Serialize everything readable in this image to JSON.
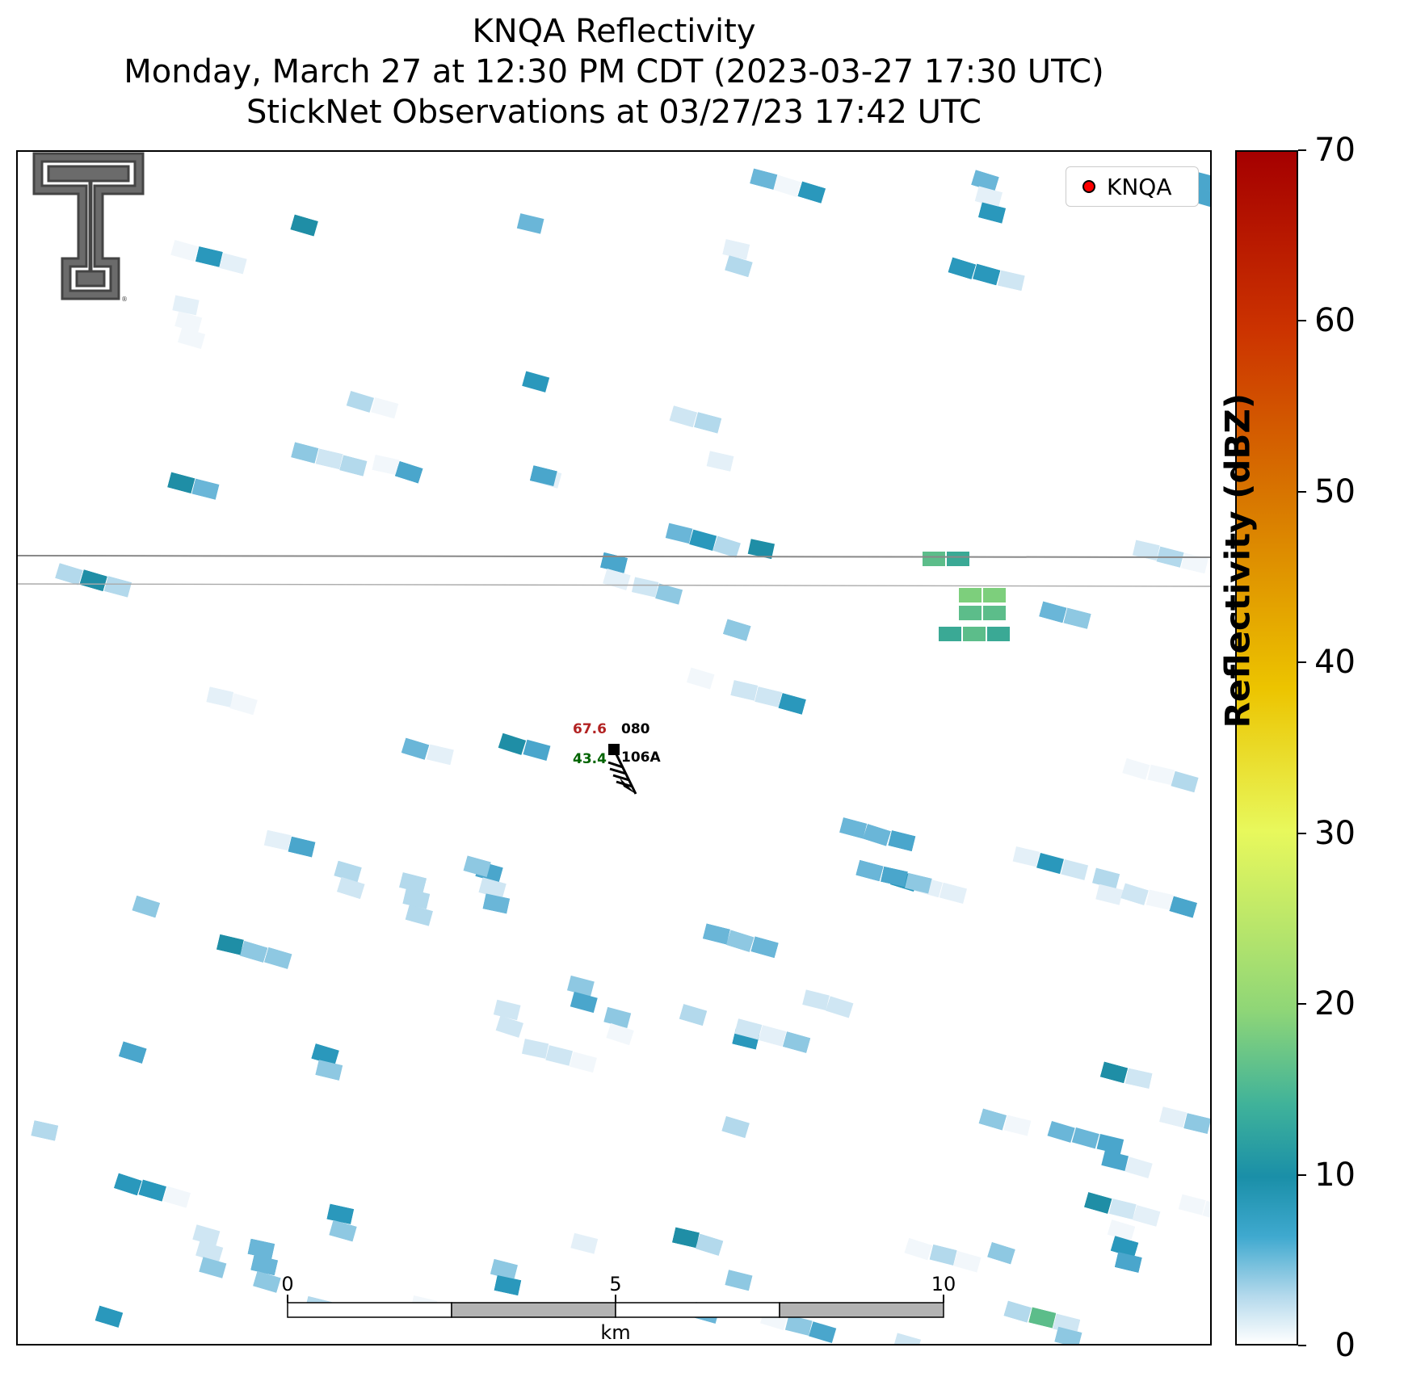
{
  "title": {
    "line1": "KNQA Reflectivity",
    "line2": "Monday, March 27 at 12:30 PM CDT (2023-03-27 17:30 UTC)",
    "line3": "StickNet Observations at 03/27/23 17:42 UTC"
  },
  "legend": {
    "label": "KNQA",
    "marker_color": "#ff0000"
  },
  "station": {
    "id_top": "080",
    "id_bottom": "106A",
    "temperature": "67.6",
    "dewpoint": "43.4",
    "temperature_color": "#b22222",
    "dewpoint_color": "#006400"
  },
  "scale_bar": {
    "labels": [
      "0",
      "5",
      "10"
    ],
    "unit": "km"
  },
  "colorbar": {
    "title": "Reflectivity (dBZ)",
    "ticks": [
      "0",
      "10",
      "20",
      "30",
      "40",
      "50",
      "60",
      "70"
    ],
    "range": [
      0,
      70
    ]
  },
  "logo": {
    "name": "Texas Tech Double T",
    "registered_mark": "®"
  }
}
